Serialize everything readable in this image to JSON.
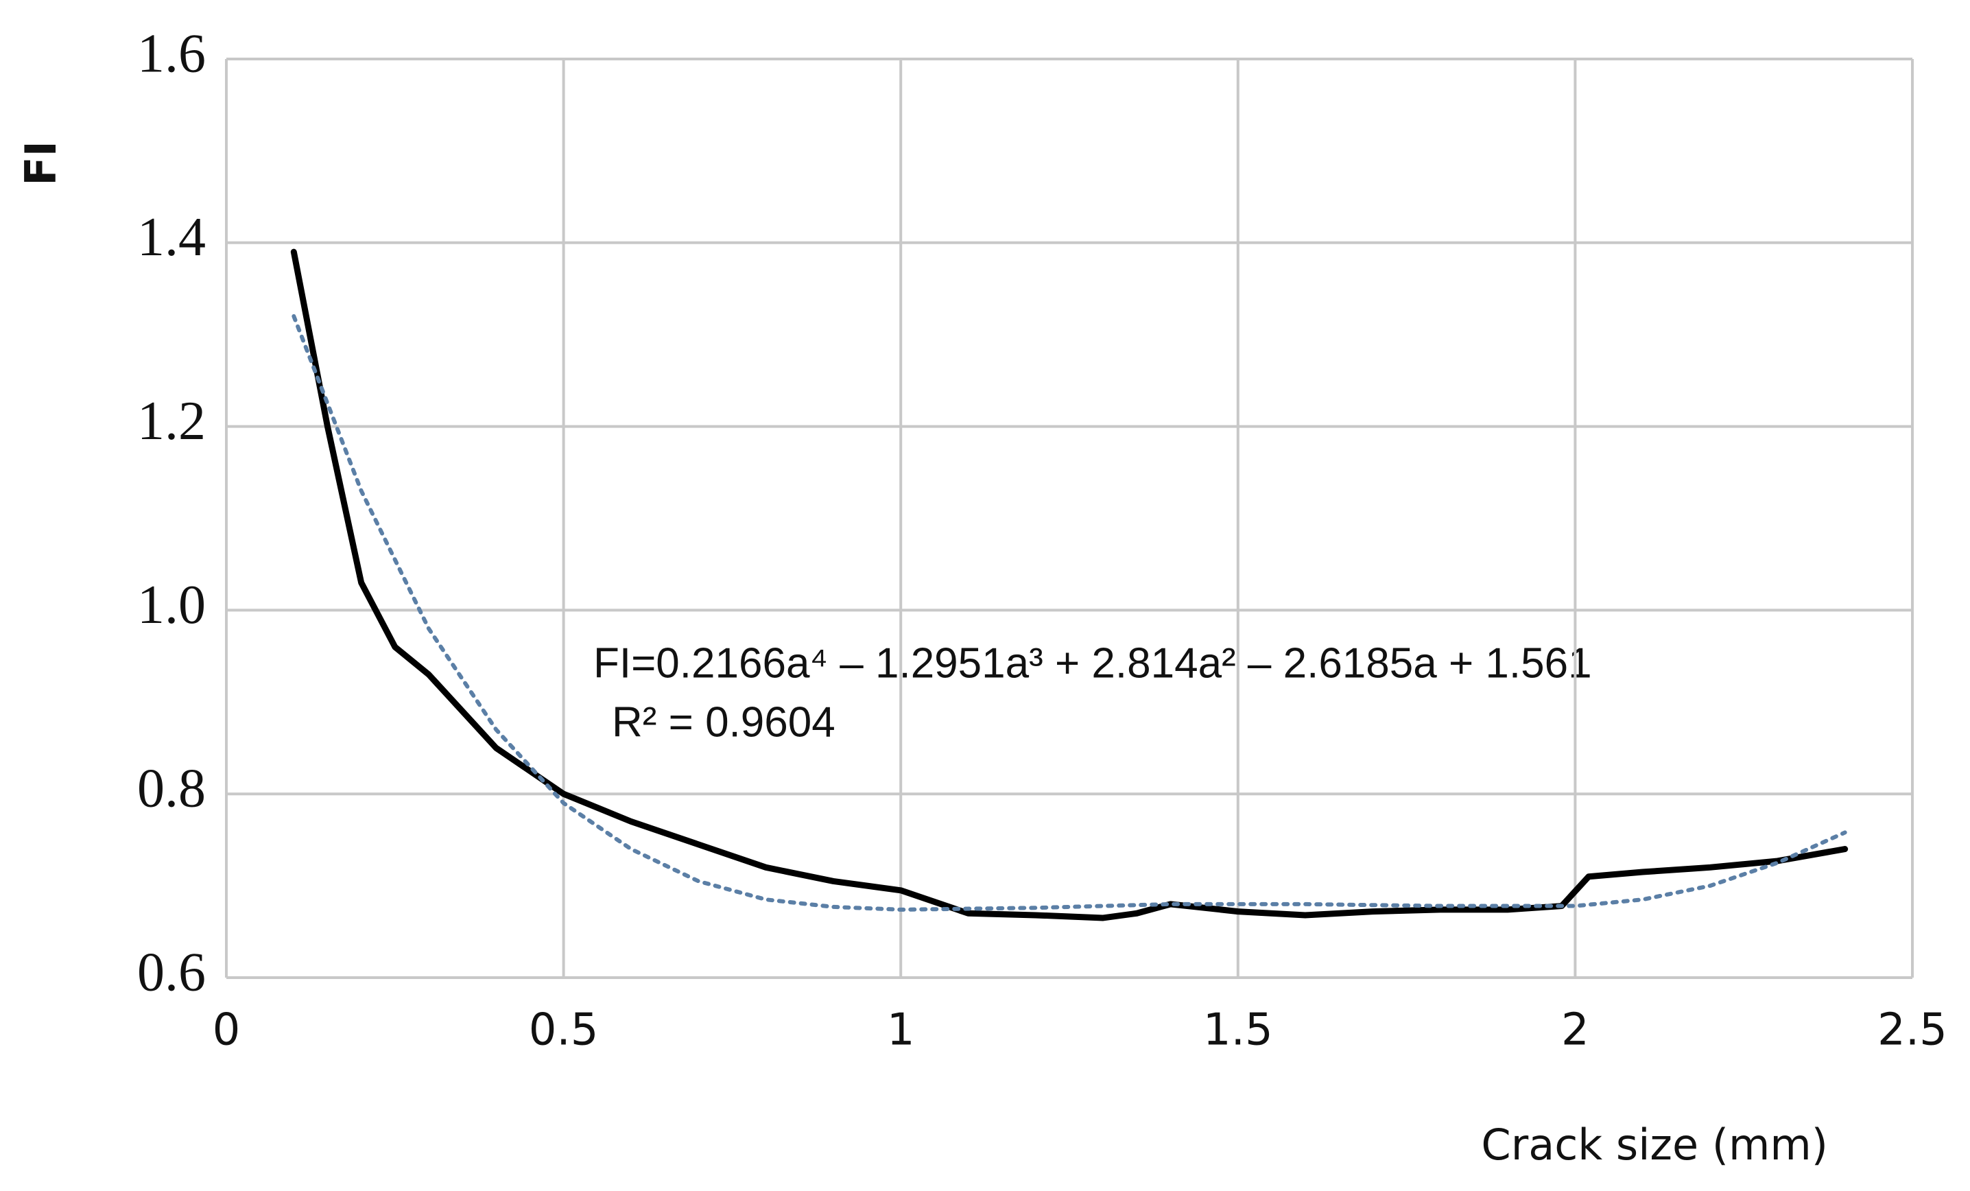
{
  "chart_data": {
    "type": "line",
    "y_label": "FI",
    "x_label": "Crack size (mm)",
    "annotations": [
      "FI=0.2166a⁴ – 1.2951a³ + 2.814a² – 2.6185a + 1.561",
      "R² = 0.9604"
    ],
    "xlim": [
      0,
      2.5
    ],
    "xticks": [
      0,
      0.5,
      1,
      1.5,
      2,
      2.5
    ],
    "ylim": [
      0.6,
      1.6
    ],
    "yticks": [
      0.6,
      0.8,
      {
        "value": 1,
        "label": "1.0"
      },
      1.2,
      1.4,
      1.6
    ],
    "grid": true,
    "series": [
      {
        "color": "#000000",
        "style": "solid",
        "x": [
          0.1,
          0.15,
          0.2,
          0.25,
          0.3,
          0.35,
          0.4,
          0.5,
          0.6,
          0.7,
          0.8,
          0.9,
          1.0,
          1.1,
          1.2,
          1.3,
          1.35,
          1.4,
          1.5,
          1.6,
          1.7,
          1.8,
          1.9,
          1.98,
          2.02,
          2.1,
          2.2,
          2.3,
          2.4
        ],
        "values": [
          1.39,
          1.2,
          1.03,
          0.96,
          0.93,
          0.89,
          0.85,
          0.8,
          0.77,
          0.745,
          0.72,
          0.705,
          0.695,
          0.67,
          0.668,
          0.665,
          0.67,
          0.68,
          0.672,
          0.668,
          0.672,
          0.674,
          0.674,
          0.678,
          0.71,
          0.715,
          0.72,
          0.727,
          0.74
        ]
      },
      {
        "color": "#5b7fa6",
        "style": "dotted",
        "x": [
          0.1,
          0.2,
          0.3,
          0.4,
          0.5,
          0.6,
          0.7,
          0.8,
          0.9,
          1.0,
          1.2,
          1.4,
          1.6,
          1.8,
          2.0,
          2.1,
          2.2,
          2.3,
          2.4
        ],
        "values": [
          1.32,
          1.13,
          0.98,
          0.87,
          0.79,
          0.74,
          0.705,
          0.685,
          0.677,
          0.674,
          0.676,
          0.68,
          0.68,
          0.678,
          0.678,
          0.685,
          0.7,
          0.725,
          0.758
        ]
      }
    ]
  }
}
